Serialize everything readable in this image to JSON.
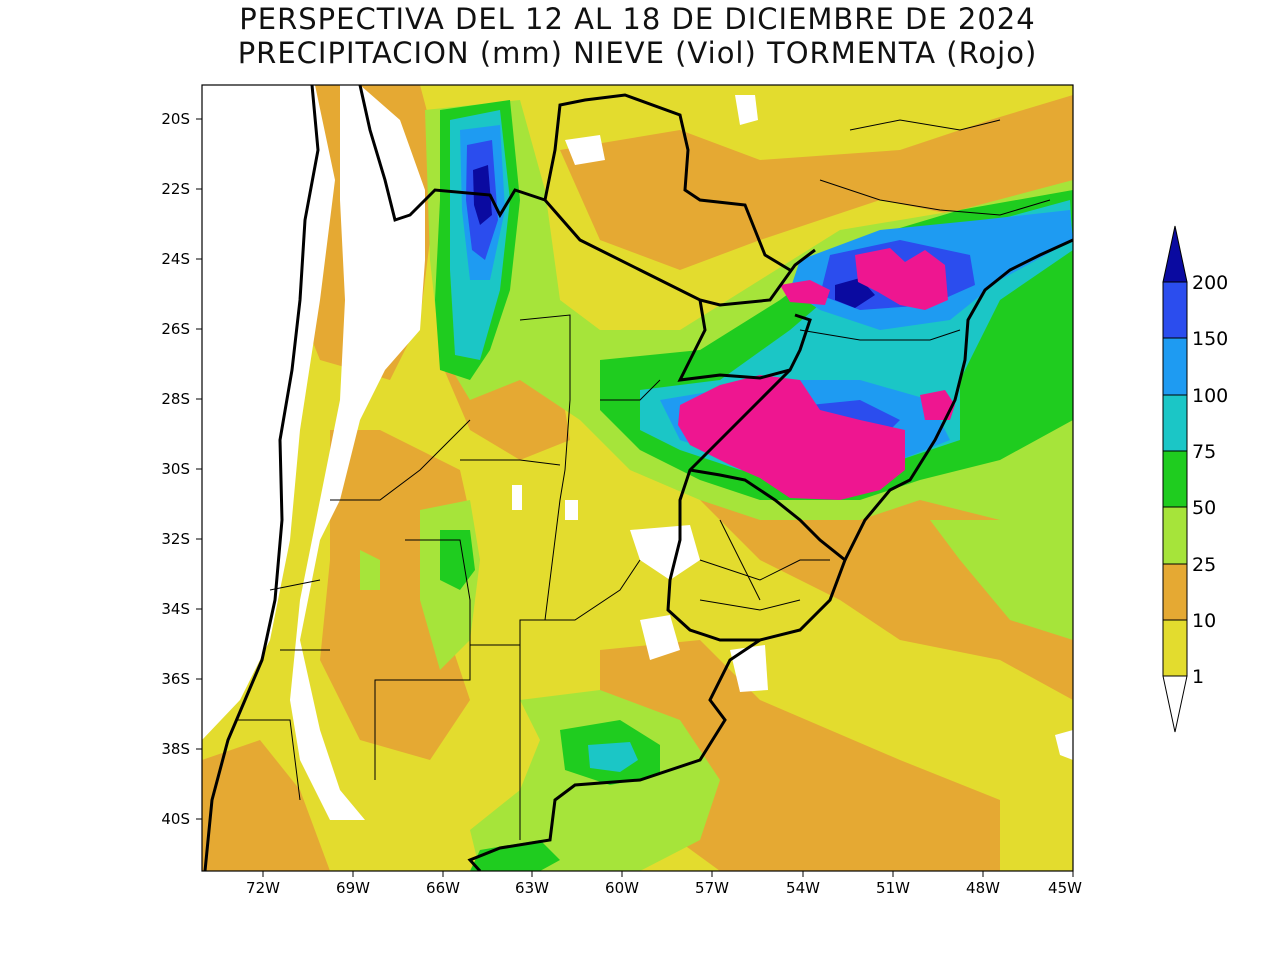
{
  "title": {
    "line1": "PERSPECTIVA DEL 12 AL 18 DE DICIEMBRE DE 2024",
    "line2": "PRECIPITACION (mm) NIEVE (Viol) TORMENTA (Rojo)"
  },
  "axes": {
    "lat_labels": [
      "20S",
      "22S",
      "24S",
      "26S",
      "28S",
      "30S",
      "32S",
      "34S",
      "36S",
      "38S",
      "40S"
    ],
    "lon_labels": [
      "72W",
      "69W",
      "66W",
      "63W",
      "60W",
      "57W",
      "54W",
      "51W",
      "48W",
      "45W"
    ]
  },
  "legend": {
    "levels": [
      {
        "label": "1",
        "color": "#e3dc2e"
      },
      {
        "label": "10",
        "color": "#e5a933"
      },
      {
        "label": "25",
        "color": "#a6e43a"
      },
      {
        "label": "50",
        "color": "#1fcc1f"
      },
      {
        "label": "75",
        "color": "#1bc6c6"
      },
      {
        "label": "100",
        "color": "#1e9bf2"
      },
      {
        "label": "150",
        "color": "#2b4dee"
      },
      {
        "label": "200",
        "color": "#0a0aa0"
      }
    ],
    "below_color": "#ffffff",
    "storm_color": "#ee1690"
  }
}
